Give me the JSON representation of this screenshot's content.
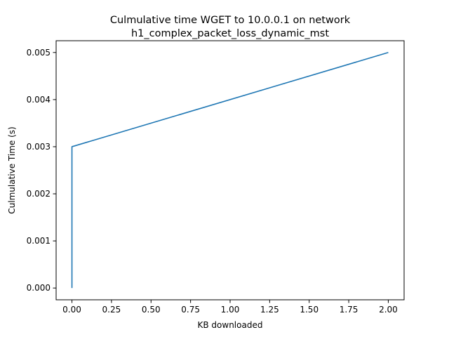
{
  "chart_data": {
    "type": "line",
    "title": [
      "Culmulative time WGET to 10.0.0.1 on network",
      "h1_complex_packet_loss_dynamic_mst"
    ],
    "xlabel": "KB downloaded",
    "ylabel": "Culmulative Time (s)",
    "xlim": [
      -0.1,
      2.1
    ],
    "ylim": [
      -0.00025,
      0.00525
    ],
    "x_ticks": [
      0.0,
      0.25,
      0.5,
      0.75,
      1.0,
      1.25,
      1.5,
      1.75,
      2.0
    ],
    "x_tick_labels": [
      "0.00",
      "0.25",
      "0.50",
      "0.75",
      "1.00",
      "1.25",
      "1.50",
      "1.75",
      "2.00"
    ],
    "y_ticks": [
      0.0,
      0.001,
      0.002,
      0.003,
      0.004,
      0.005
    ],
    "y_tick_labels": [
      "0.000",
      "0.001",
      "0.002",
      "0.003",
      "0.004",
      "0.005"
    ],
    "grid": false,
    "series": [
      {
        "color": "#1f77b4",
        "x": [
          0.0,
          0.0,
          2.0
        ],
        "y": [
          0.0,
          0.003,
          0.005
        ]
      }
    ]
  }
}
